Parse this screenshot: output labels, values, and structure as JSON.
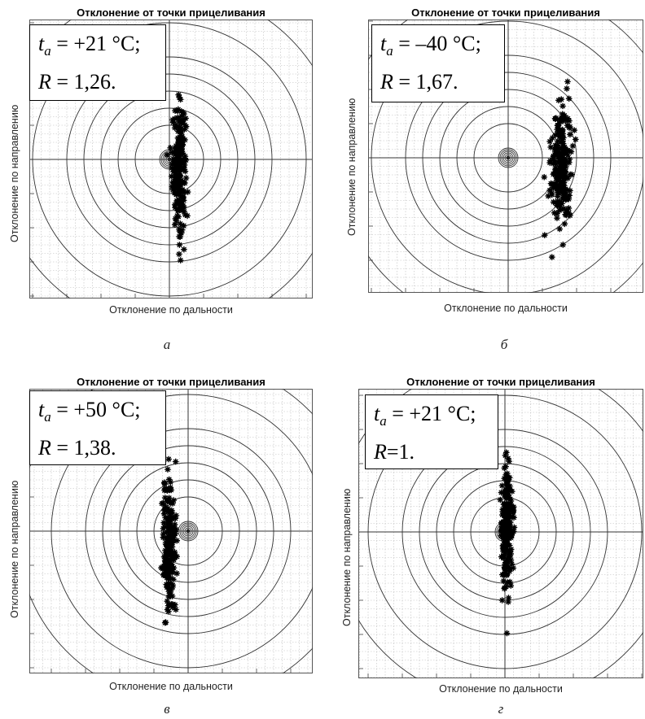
{
  "chart_data": [
    {
      "type": "scatter",
      "panel_id": "a",
      "title": "Отклонение от точки прицеливания",
      "xlabel": "Отклонение по дальности",
      "ylabel": "Отклонение по направлению",
      "legend": {
        "ta_label": "t",
        "ta_sub": "a",
        "ta_value": "= +21 °C;",
        "r_label": "R",
        "r_value": "= 1,26."
      },
      "caption": "а",
      "grid": true,
      "rings": "concentric target circles centred at aim point",
      "cluster": {
        "center_x": 0.28,
        "center_y": -0.2,
        "spread_x": 0.2,
        "spread_y": 1.0,
        "count": 230
      }
    },
    {
      "type": "scatter",
      "panel_id": "b",
      "title": "Отклонение от точки прицеливания",
      "xlabel": "Отклонение по дальности",
      "ylabel": "Отклонение по направлению",
      "legend": {
        "ta_label": "t",
        "ta_sub": "a",
        "ta_value": "= –40 °C;",
        "r_label": "R",
        "r_value": "= 1,67."
      },
      "caption": "б",
      "grid": true,
      "rings": "concentric target circles centred at aim point",
      "cluster": {
        "center_x": 1.55,
        "center_y": -0.2,
        "spread_x": 0.3,
        "spread_y": 1.0,
        "count": 230
      }
    },
    {
      "type": "scatter",
      "panel_id": "v",
      "title": "Отклонение от точки прицеливания",
      "xlabel": "Отклонение по дальности",
      "ylabel": "Отклонение по направлению",
      "legend": {
        "ta_label": "t",
        "ta_sub": "a",
        "ta_value": "= +50 °C;",
        "r_label": "R",
        "r_value": "= 1,38."
      },
      "caption": "в",
      "grid": true,
      "rings": "concentric target circles centred at aim point",
      "cluster": {
        "center_x": -0.55,
        "center_y": -0.5,
        "spread_x": 0.2,
        "spread_y": 1.1,
        "count": 230
      }
    },
    {
      "type": "scatter",
      "panel_id": "g",
      "title": "Отклонение от точки прицеливания",
      "xlabel": "Отклонение по дальности",
      "ylabel": "Отклонение по направлению",
      "legend": {
        "ta_label": "t",
        "ta_sub": "a",
        "ta_value": "= +21 °C;",
        "r_label": "R",
        "r_value": "=1."
      },
      "caption": "г",
      "grid": true,
      "rings": "concentric target circles centred at aim point",
      "cluster": {
        "center_x": 0.05,
        "center_y": 0.05,
        "spread_x": 0.16,
        "spread_y": 1.0,
        "count": 230
      }
    }
  ]
}
